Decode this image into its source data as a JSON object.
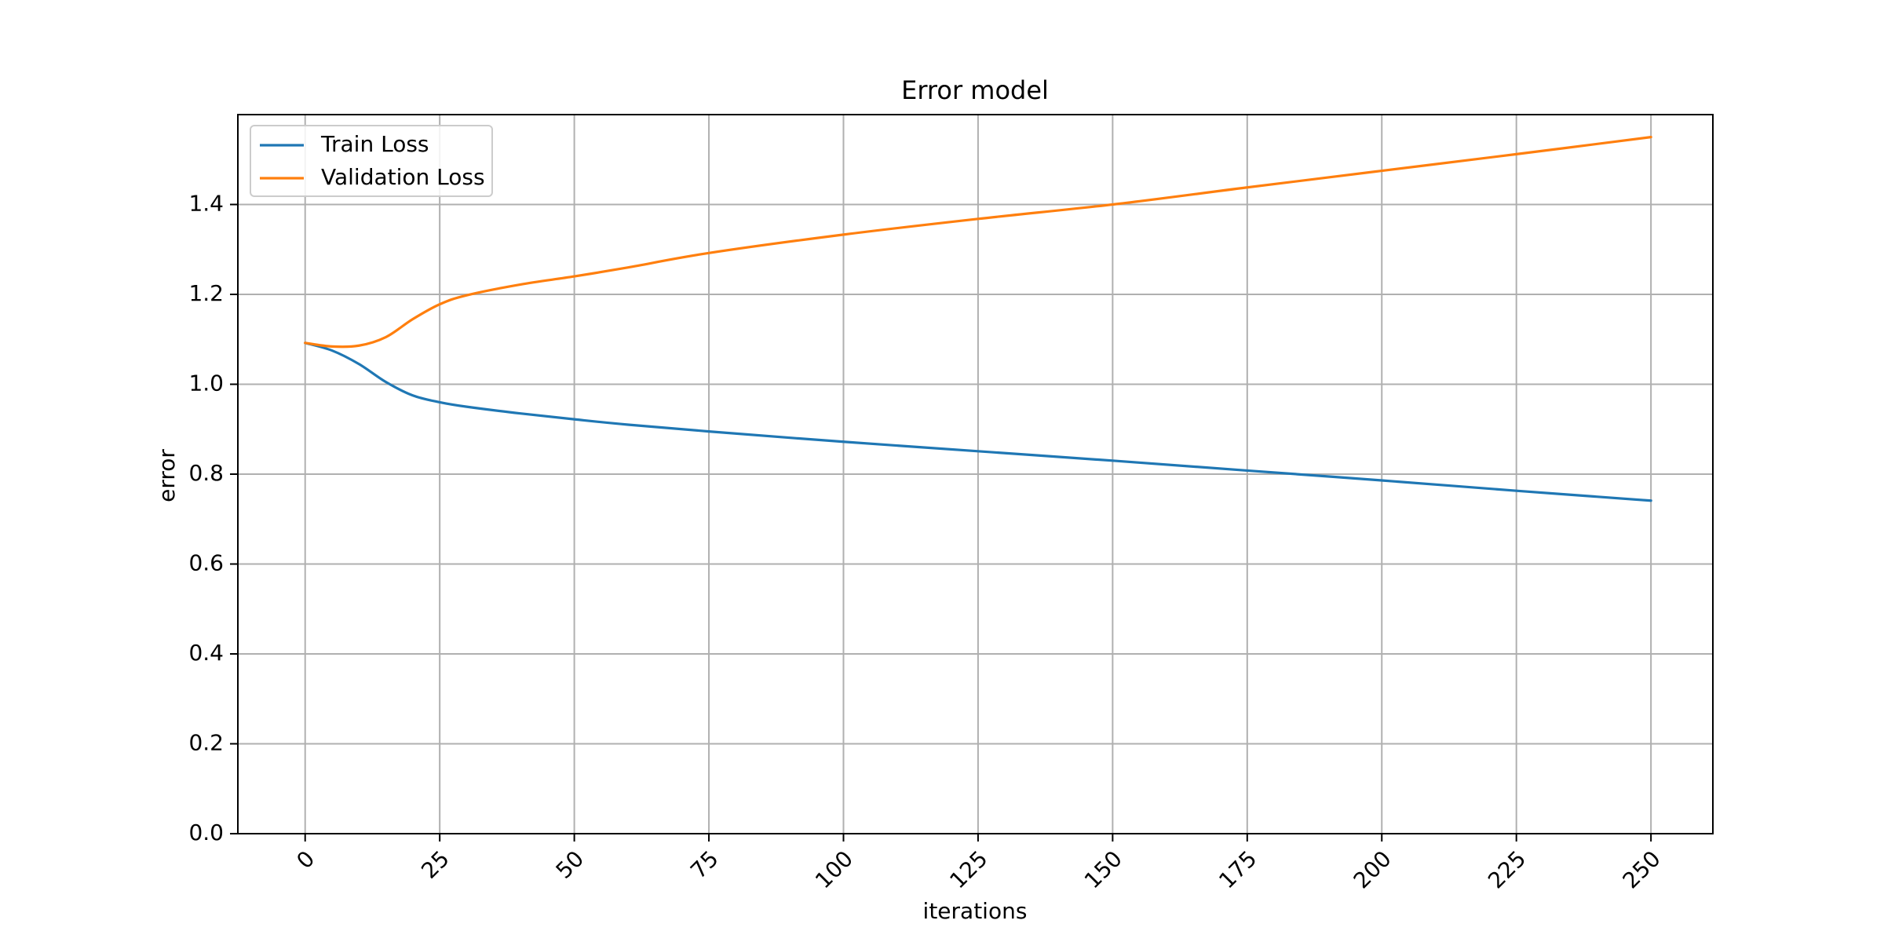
{
  "chart_data": {
    "type": "line",
    "title": "Error model",
    "xlabel": "iterations",
    "ylabel": "error",
    "xlim": [
      -12.5,
      261.5
    ],
    "ylim": [
      0,
      1.6
    ],
    "xticks": [
      0,
      25,
      50,
      75,
      100,
      125,
      150,
      175,
      200,
      225,
      250
    ],
    "xtick_labels": [
      "0",
      "25",
      "50",
      "75",
      "100",
      "125",
      "150",
      "175",
      "200",
      "225",
      "250"
    ],
    "yticks": [
      0.0,
      0.2,
      0.4,
      0.6,
      0.8,
      1.0,
      1.2,
      1.4
    ],
    "ytick_labels": [
      "0.0",
      "0.2",
      "0.4",
      "0.6",
      "0.8",
      "1.0",
      "1.2",
      "1.4"
    ],
    "grid": true,
    "legend_position": "top-left",
    "series": [
      {
        "name": "Train Loss",
        "color": "#1f77b4",
        "x": [
          0,
          5,
          10,
          15,
          20,
          25,
          30,
          40,
          50,
          60,
          75,
          100,
          125,
          150,
          175,
          200,
          225,
          250
        ],
        "values": [
          1.092,
          1.075,
          1.045,
          1.005,
          0.975,
          0.96,
          0.95,
          0.935,
          0.922,
          0.91,
          0.895,
          0.872,
          0.851,
          0.83,
          0.808,
          0.786,
          0.763,
          0.741
        ]
      },
      {
        "name": "Validation Loss",
        "color": "#ff7f0e",
        "x": [
          0,
          5,
          10,
          15,
          20,
          25,
          30,
          40,
          50,
          60,
          75,
          100,
          125,
          150,
          175,
          200,
          225,
          250
        ],
        "values": [
          1.092,
          1.084,
          1.086,
          1.105,
          1.145,
          1.178,
          1.198,
          1.222,
          1.24,
          1.26,
          1.292,
          1.333,
          1.368,
          1.4,
          1.438,
          1.475,
          1.512,
          1.55
        ]
      }
    ]
  }
}
